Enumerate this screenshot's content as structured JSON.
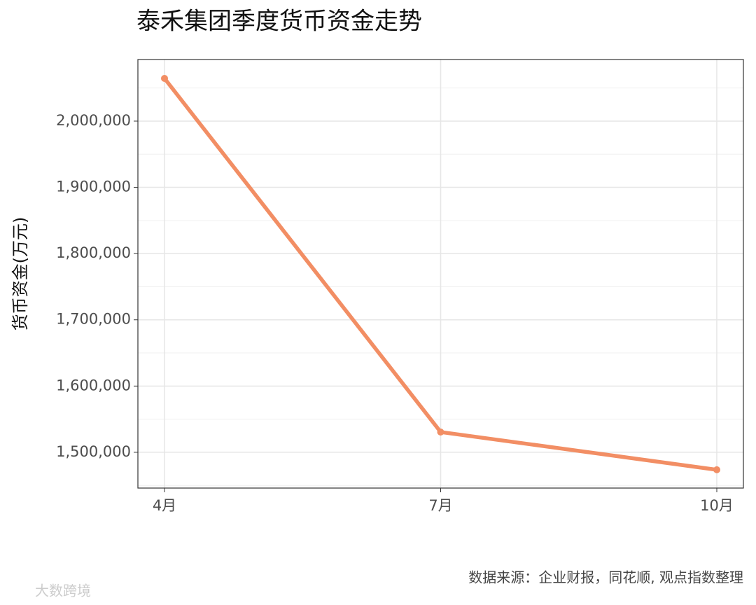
{
  "chart_data": {
    "type": "line",
    "title": "泰禾集团季度货币资金走势",
    "y_label": "货币资金(万元)",
    "categories": [
      "4月",
      "7月",
      "10月"
    ],
    "series": [
      {
        "name": "货币资金",
        "color": "#f28e64",
        "values": [
          2064500,
          1530600,
          1473600
        ]
      }
    ],
    "ylim": [
      1446000,
      2093000
    ],
    "yticks": [
      {
        "value": 1500000,
        "label": "1,500,000"
      },
      {
        "value": 1600000,
        "label": "1,600,000"
      },
      {
        "value": 1700000,
        "label": "1,700,000"
      },
      {
        "value": 1800000,
        "label": "1,800,000"
      },
      {
        "value": 1900000,
        "label": "1,900,000"
      },
      {
        "value": 2000000,
        "label": "2,000,000"
      }
    ],
    "grid": true,
    "caption": "数据来源：企业财报，同花顺, 观点指数整理",
    "watermark": "大数跨境"
  }
}
